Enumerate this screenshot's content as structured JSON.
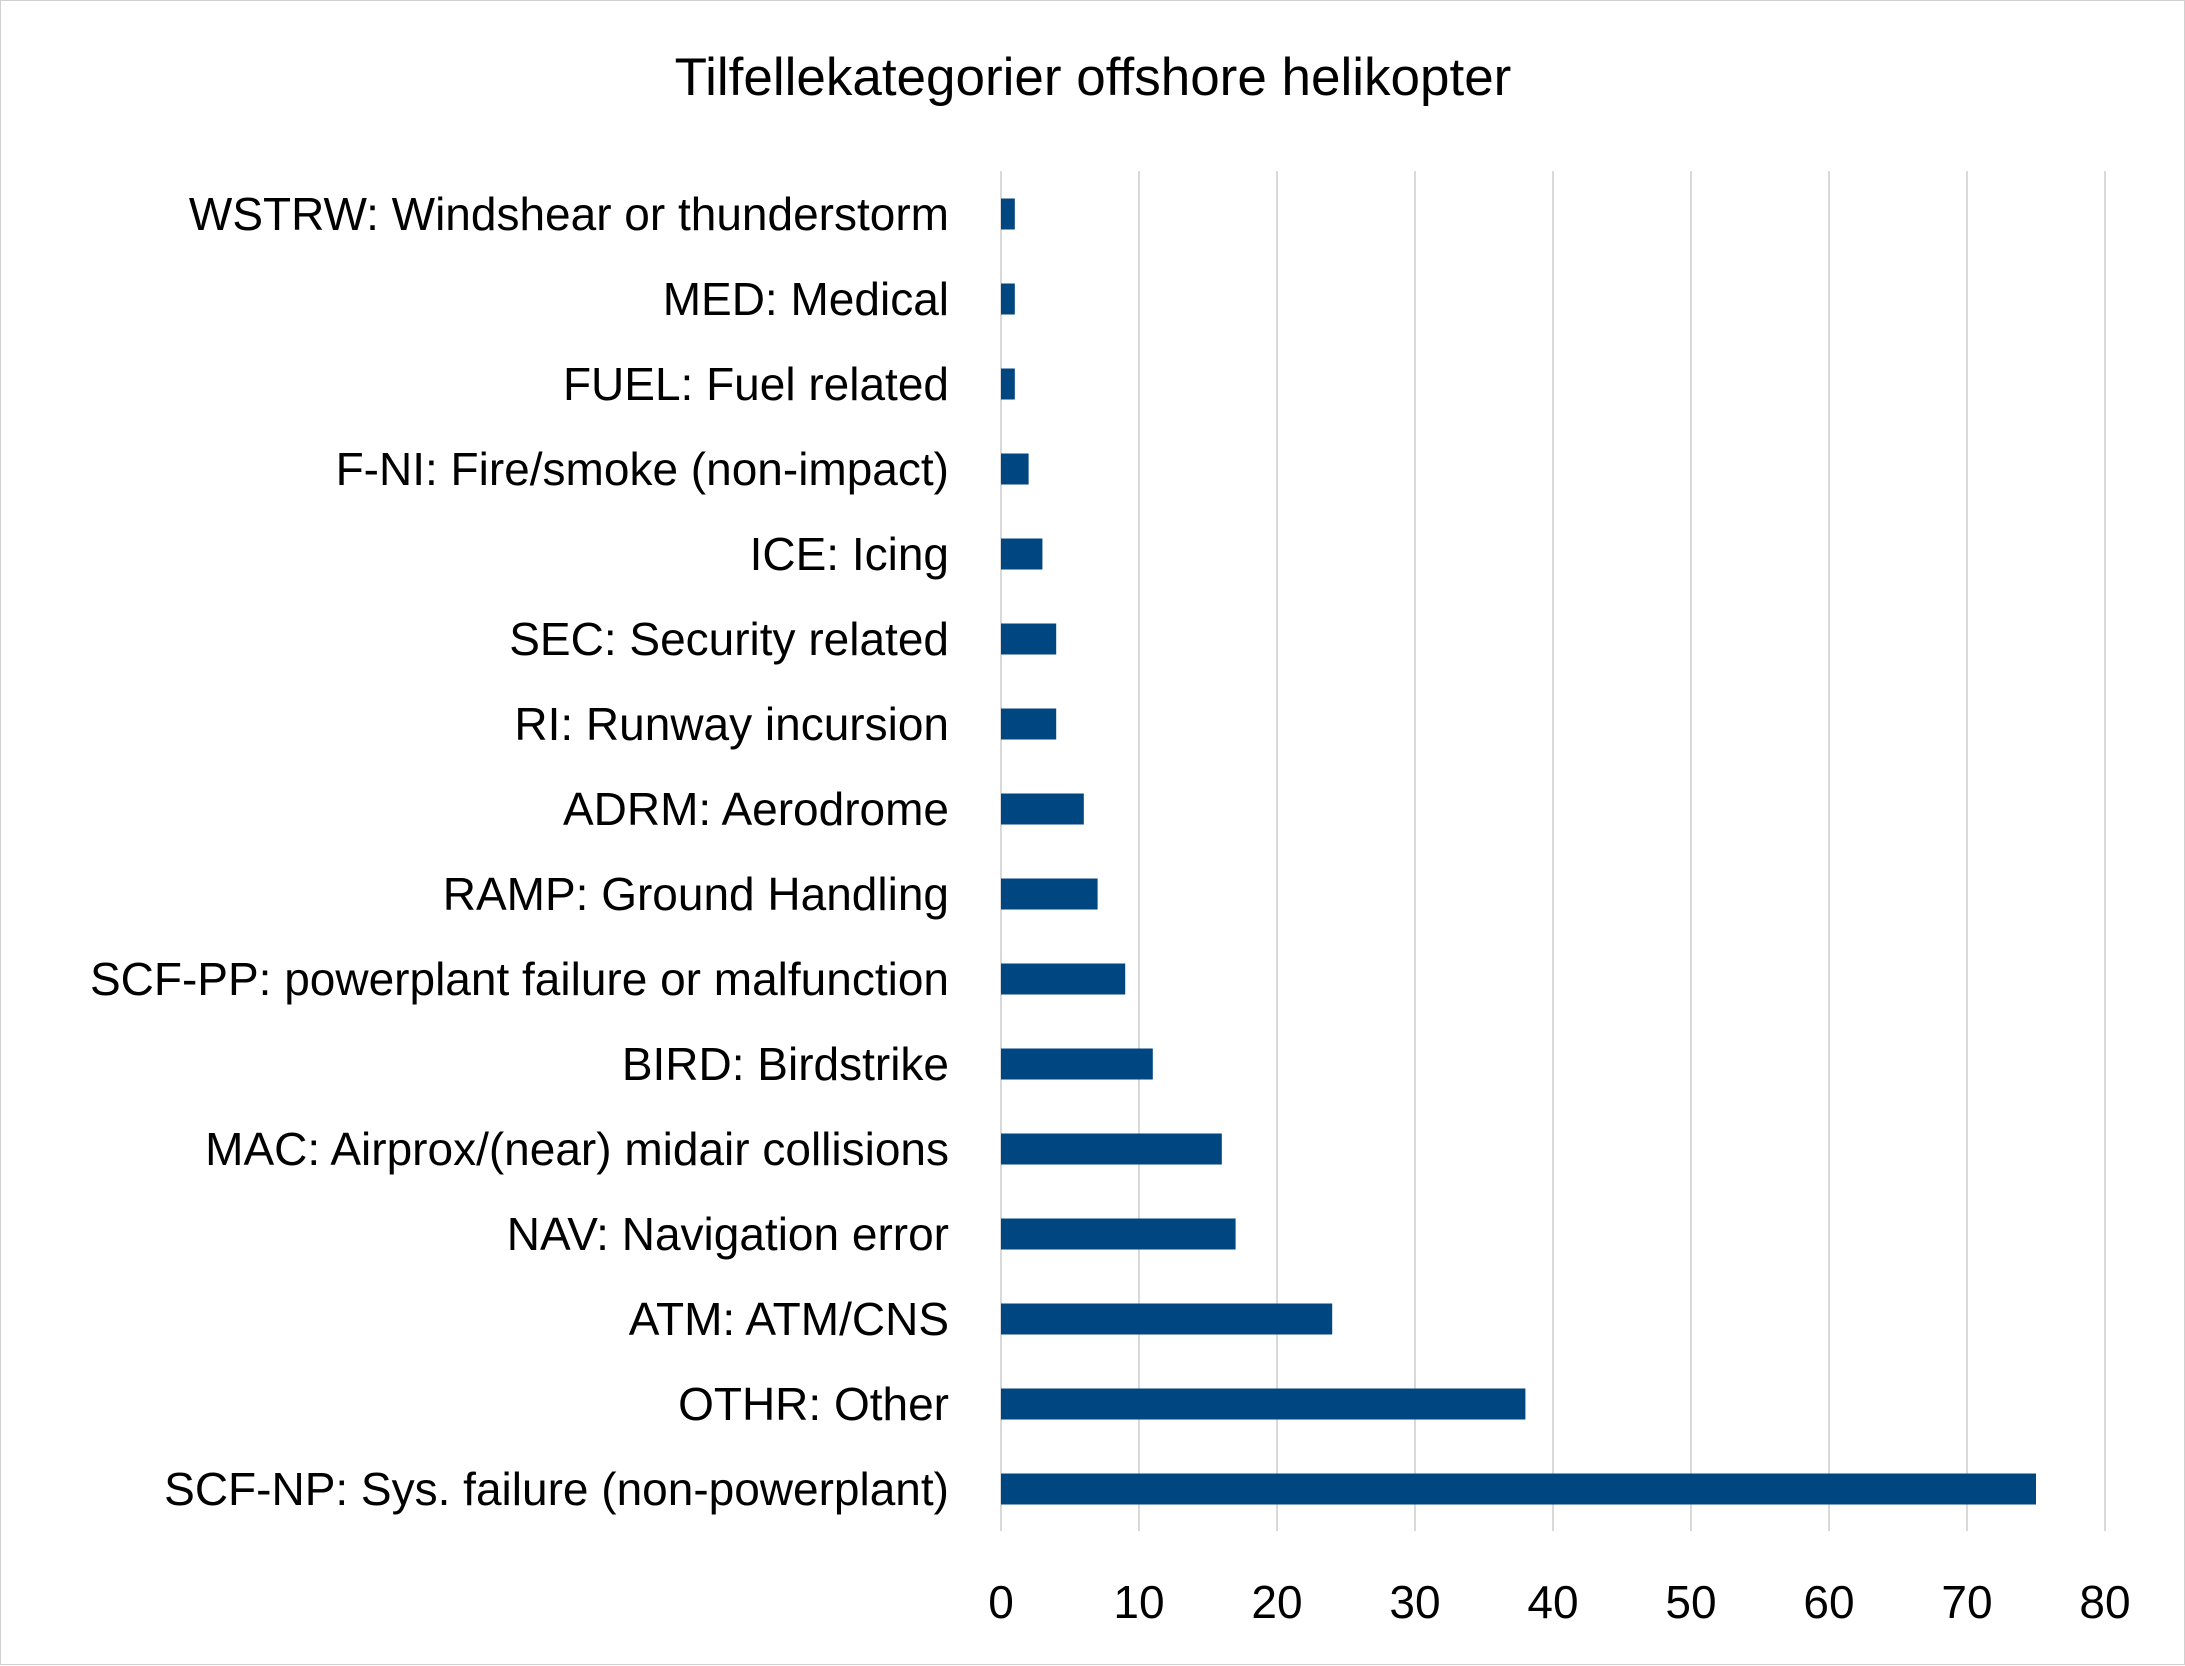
{
  "chart_data": {
    "type": "bar",
    "orientation": "horizontal",
    "title": "Tilfellekategorier offshore helikopter",
    "xlabel": "",
    "ylabel": "",
    "categories": [
      "WSTRW: Windshear or thunderstorm",
      "MED: Medical",
      "FUEL: Fuel related",
      "F-NI: Fire/smoke (non-impact)",
      "ICE: Icing",
      "SEC: Security related",
      "RI: Runway incursion",
      "ADRM: Aerodrome",
      "RAMP: Ground Handling",
      "SCF-PP: powerplant failure or malfunction",
      "BIRD: Birdstrike",
      "MAC: Airprox/(near) midair collisions",
      "NAV: Navigation error",
      "ATM: ATM/CNS",
      "OTHR: Other",
      "SCF-NP: Sys. failure (non-powerplant)"
    ],
    "values": [
      1,
      1,
      1,
      2,
      3,
      4,
      4,
      6,
      7,
      9,
      11,
      16,
      17,
      24,
      38,
      75
    ],
    "xlim": [
      0,
      80
    ],
    "xticks": [
      "0",
      "10",
      "20",
      "30",
      "40",
      "50",
      "60",
      "70",
      "80"
    ],
    "grid": "vertical",
    "legend": "none",
    "bar_color": "#004680"
  }
}
